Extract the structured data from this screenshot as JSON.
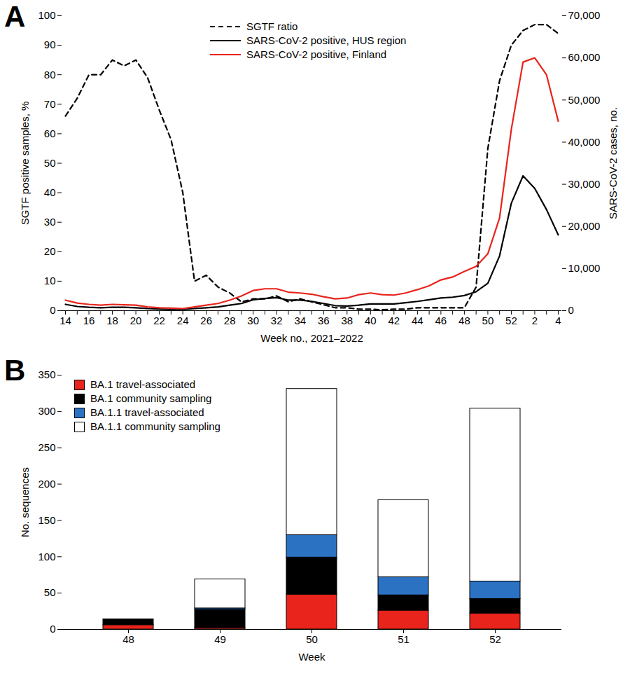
{
  "chart_data": [
    {
      "type": "line",
      "title": "A",
      "xlabel": "Week no., 2021–2022",
      "ylabel": "SGTF positive samples, %",
      "y2label": "SARS-CoV-2 cases, no.",
      "categories": [
        14,
        null,
        16,
        null,
        18,
        null,
        20,
        null,
        22,
        null,
        24,
        null,
        26,
        null,
        28,
        null,
        30,
        null,
        32,
        null,
        34,
        null,
        36,
        null,
        38,
        null,
        40,
        null,
        42,
        null,
        44,
        null,
        46,
        null,
        48,
        null,
        50,
        null,
        52,
        null,
        2,
        null,
        4
      ],
      "ylim": [
        0,
        100
      ],
      "yticks": [
        0,
        10,
        20,
        30,
        40,
        50,
        60,
        70,
        80,
        90,
        100
      ],
      "y2lim": [
        0,
        70000
      ],
      "y2ticks": [
        0,
        {
          "value": 10000,
          "label": "10,000"
        },
        {
          "value": 20000,
          "label": "20,000"
        },
        {
          "value": 30000,
          "label": "30,000"
        },
        {
          "value": 40000,
          "label": "40,000"
        },
        {
          "value": 50000,
          "label": "50,000"
        },
        {
          "value": 60000,
          "label": "60,000"
        },
        {
          "value": 70000,
          "label": "70,000"
        }
      ],
      "legend": "top",
      "series": [
        {
          "name": "SGTF ratio",
          "color": "#000000",
          "line_style": "dashed",
          "values": [
            66,
            72,
            80,
            80,
            85,
            83,
            85,
            79,
            68,
            58,
            40,
            10,
            12,
            8,
            6,
            3,
            4,
            4,
            5,
            3,
            4,
            3,
            2,
            1,
            1,
            0.5,
            0.5,
            0.3,
            0.5,
            0.5,
            1,
            1,
            1,
            1,
            1,
            8,
            55,
            78,
            90,
            95,
            97,
            97,
            94
          ]
        },
        {
          "name": "SARS-CoV-2 positive, HUS region",
          "color": "#000000",
          "line_style": "solid",
          "axis": "y2",
          "values": [
            1500,
            1000,
            800,
            700,
            800,
            800,
            700,
            500,
            400,
            300,
            300,
            500,
            700,
            900,
            1300,
            1700,
            2600,
            2900,
            3100,
            2500,
            2500,
            2200,
            1700,
            1200,
            1100,
            1300,
            1600,
            1600,
            1600,
            1900,
            2200,
            2600,
            3000,
            3200,
            3600,
            4500,
            6500,
            13000,
            25500,
            32000,
            29000,
            24000,
            18000
          ]
        },
        {
          "name": "SARS-CoV-2 positive, Finland",
          "color": "#e8241c",
          "line_style": "solid",
          "axis": "y2",
          "values": [
            2500,
            1800,
            1500,
            1300,
            1500,
            1400,
            1300,
            900,
            700,
            600,
            500,
            900,
            1300,
            1700,
            2500,
            3500,
            4800,
            5200,
            5200,
            4400,
            4200,
            3900,
            3300,
            2800,
            3000,
            3800,
            4200,
            3800,
            3700,
            4200,
            5000,
            5900,
            7300,
            8000,
            9300,
            10500,
            13500,
            22000,
            43000,
            59000,
            60000,
            56000,
            45000
          ]
        }
      ]
    },
    {
      "type": "bar",
      "title": "B",
      "stacked": true,
      "xlabel": "Week",
      "ylabel": "No. sequences",
      "categories": [
        48,
        49,
        50,
        51,
        52
      ],
      "ylim": [
        0,
        350
      ],
      "yticks": [
        0,
        50,
        100,
        150,
        200,
        250,
        300,
        350
      ],
      "legend": "top-left",
      "series": [
        {
          "name": "BA.1 travel-associated",
          "color": "#e8241c",
          "values": [
            6,
            2,
            48,
            26,
            22
          ]
        },
        {
          "name": "BA.1 community sampling",
          "color": "#000000",
          "values": [
            8,
            25,
            51,
            21,
            20
          ]
        },
        {
          "name": "BA.1.1 travel-associated",
          "color": "#2b72c3",
          "values": [
            0,
            2,
            31,
            25,
            24
          ]
        },
        {
          "name": "BA.1.1 community sampling",
          "color": "#ffffff",
          "values": [
            0,
            40,
            201,
            106,
            238
          ]
        }
      ]
    }
  ]
}
